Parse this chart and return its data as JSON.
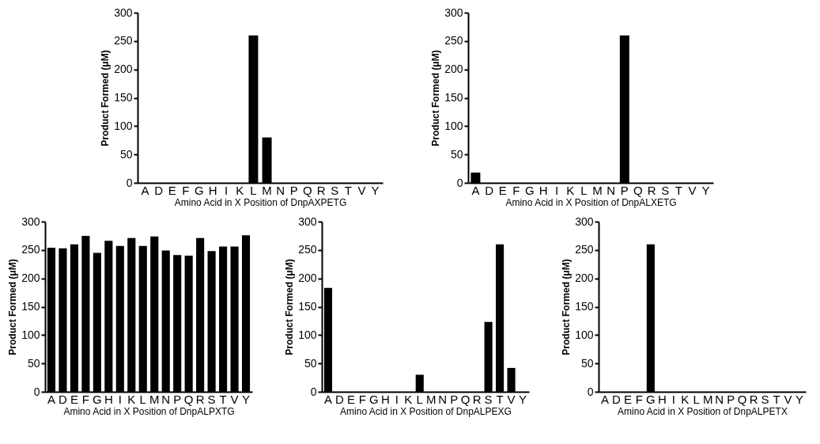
{
  "chart_data": [
    {
      "type": "bar",
      "categories": [
        "A",
        "D",
        "E",
        "F",
        "G",
        "H",
        "I",
        "K",
        "L",
        "M",
        "N",
        "P",
        "Q",
        "R",
        "S",
        "T",
        "V",
        "Y"
      ],
      "values": [
        0,
        0,
        0,
        0,
        0,
        0,
        0,
        0,
        260,
        80,
        0,
        0,
        0,
        0,
        0,
        0,
        0,
        0
      ],
      "color": "#000000",
      "ylim": [
        0,
        300
      ],
      "yticks": [
        0,
        50,
        100,
        150,
        200,
        250,
        300
      ],
      "xlabel": "Amino Acid in X Position of DnpAXPETG",
      "ylabel": "Product Formed (μM)",
      "grid": false
    },
    {
      "type": "bar",
      "categories": [
        "A",
        "D",
        "E",
        "F",
        "G",
        "H",
        "I",
        "K",
        "L",
        "M",
        "N",
        "P",
        "Q",
        "R",
        "S",
        "T",
        "V",
        "Y"
      ],
      "values": [
        18,
        0,
        0,
        0,
        0,
        0,
        0,
        0,
        0,
        0,
        0,
        260,
        0,
        0,
        0,
        0,
        0,
        0
      ],
      "color": "#000000",
      "ylim": [
        0,
        300
      ],
      "yticks": [
        0,
        50,
        100,
        150,
        200,
        250,
        300
      ],
      "xlabel": "Amino Acid in X Position of DnpALXETG",
      "ylabel": "Product Formed (μM)",
      "grid": false
    },
    {
      "type": "bar",
      "categories": [
        "A",
        "D",
        "E",
        "F",
        "G",
        "H",
        "I",
        "K",
        "L",
        "M",
        "N",
        "P",
        "Q",
        "R",
        "S",
        "T",
        "V",
        "Y"
      ],
      "values": [
        254,
        253,
        260,
        275,
        245,
        266,
        257,
        271,
        257,
        274,
        249,
        241,
        240,
        271,
        248,
        256,
        256,
        276
      ],
      "color": "#000000",
      "ylim": [
        0,
        300
      ],
      "yticks": [
        0,
        50,
        100,
        150,
        200,
        250,
        300
      ],
      "xlabel": "Amino Acid in X Position of DnpALPXTG",
      "ylabel": "Product Formed (μM)",
      "grid": false
    },
    {
      "type": "bar",
      "categories": [
        "A",
        "D",
        "E",
        "F",
        "G",
        "H",
        "I",
        "K",
        "L",
        "M",
        "N",
        "P",
        "Q",
        "R",
        "S",
        "T",
        "V",
        "Y"
      ],
      "values": [
        183,
        0,
        0,
        0,
        0,
        0,
        0,
        0,
        30,
        0,
        0,
        0,
        0,
        0,
        123,
        260,
        42,
        0
      ],
      "color": "#000000",
      "ylim": [
        0,
        300
      ],
      "yticks": [
        0,
        50,
        100,
        150,
        200,
        250,
        300
      ],
      "xlabel": "Amino Acid in X Position of DnpALPEXG",
      "ylabel": "Product Formed (μM)",
      "grid": false
    },
    {
      "type": "bar",
      "categories": [
        "A",
        "D",
        "E",
        "F",
        "G",
        "H",
        "I",
        "K",
        "L",
        "M",
        "N",
        "P",
        "Q",
        "R",
        "S",
        "T",
        "V",
        "Y"
      ],
      "values": [
        0,
        0,
        0,
        0,
        260,
        0,
        0,
        0,
        0,
        0,
        0,
        0,
        0,
        0,
        0,
        0,
        0,
        0
      ],
      "color": "#000000",
      "ylim": [
        0,
        300
      ],
      "yticks": [
        0,
        50,
        100,
        150,
        200,
        250,
        300
      ],
      "xlabel": "Amino Acid in X Position of DnpALPETX",
      "ylabel": "Product Formed (μM)",
      "grid": false
    }
  ]
}
